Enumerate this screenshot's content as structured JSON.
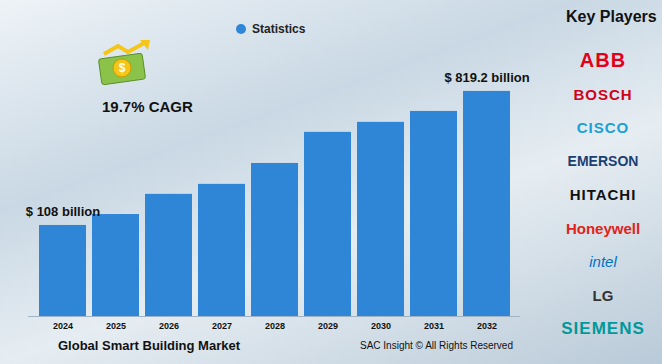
{
  "chart_data": {
    "type": "bar",
    "title": "Global Smart Building Market",
    "source": "SAC Insight © All Rights Reserved",
    "categories": [
      "2024",
      "2025",
      "2026",
      "2027",
      "2028",
      "2029",
      "2030",
      "2031",
      "2032"
    ],
    "series": [
      {
        "name": "Statistics",
        "color": "#2f86d6",
        "values": [
          108,
          166,
          273,
          326,
          437,
          602,
          655,
          713,
          819.2
        ],
        "value_labels": [
          "$ 108 billion",
          null,
          null,
          null,
          null,
          null,
          null,
          null,
          "$ 819.2 billion"
        ]
      }
    ],
    "ylim": [
      -375,
      840
    ],
    "tick_labels": "x",
    "legend": "top",
    "annotations": [
      "19.7% CAGR"
    ],
    "key_players_title": "Key Players",
    "key_players": [
      "ABB",
      "BOSCH",
      "CISCO",
      "EMERSON",
      "HITACHI",
      "Honeywell",
      "intel",
      "LG",
      "SIEMENS"
    ]
  }
}
